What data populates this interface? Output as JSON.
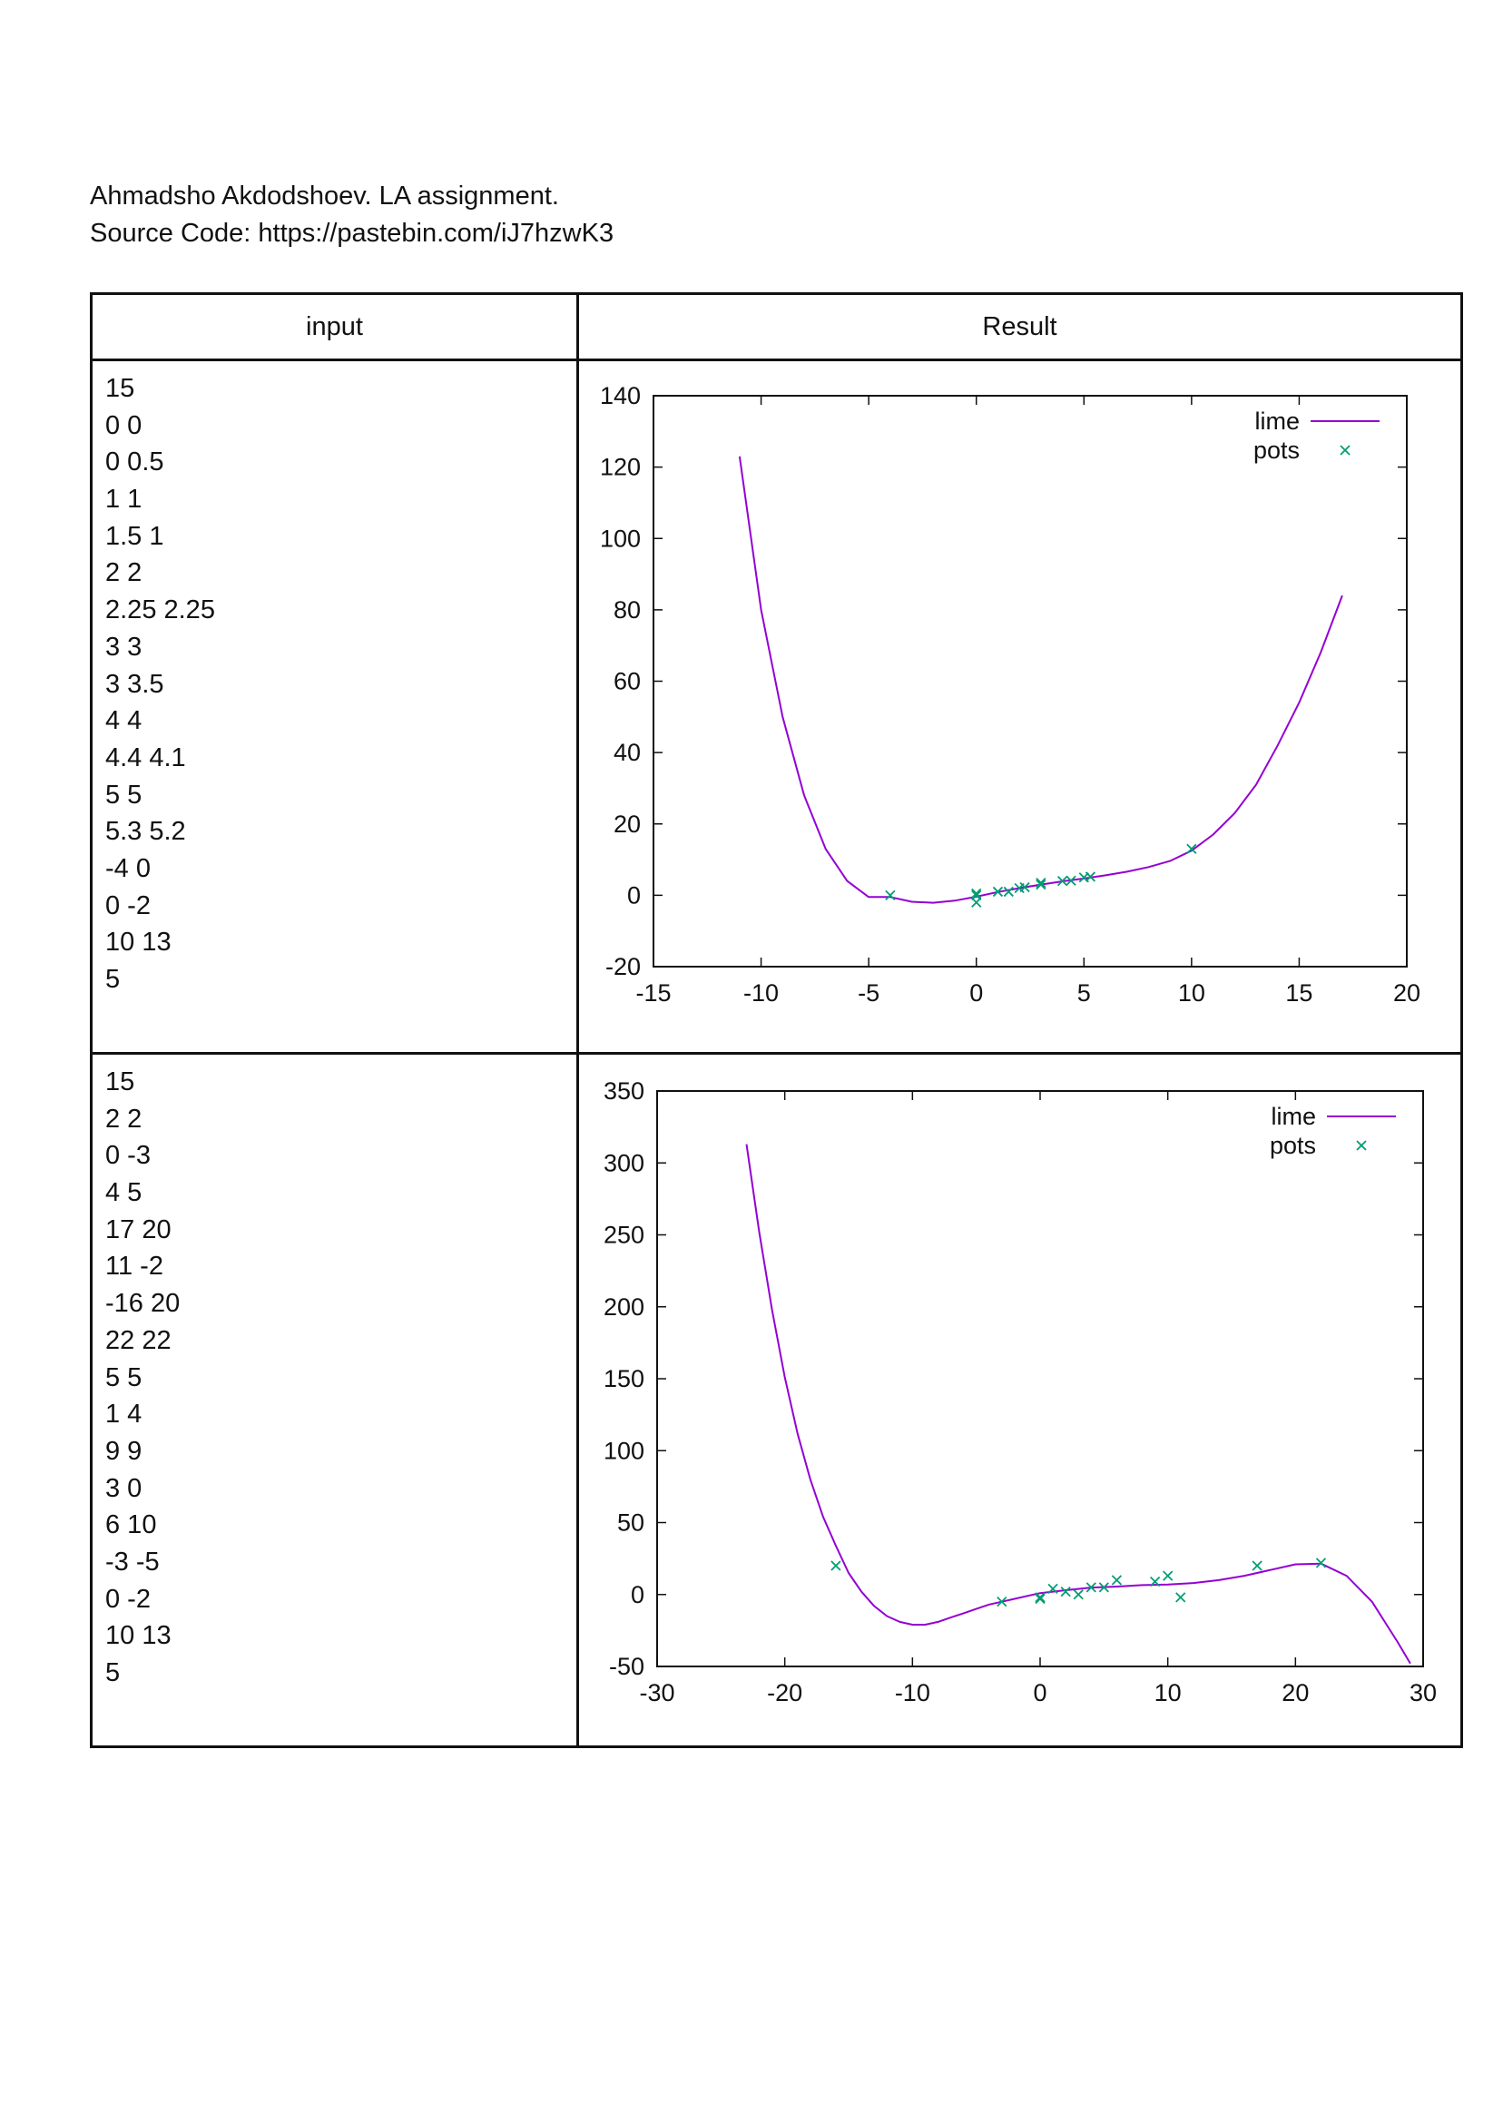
{
  "header": {
    "line1": "Ahmadsho Akdodshoev. LA assignment.",
    "line2": "Source Code: https://pastebin.com/iJ7hzwK3"
  },
  "table": {
    "col_input": "input",
    "col_result": "Result"
  },
  "rows": [
    {
      "input_lines": [
        "15",
        "0 0",
        "0 0.5",
        "1 1",
        "1.5 1",
        "2 2",
        "2.25 2.25",
        "3 3",
        "3 3.5",
        "4 4",
        "4.4 4.1",
        "5 5",
        "5.3 5.2",
        "-4 0",
        "0 -2",
        "10 13",
        "5"
      ]
    },
    {
      "input_lines": [
        "15",
        "2 2",
        "0 -3",
        "4 5",
        "17 20",
        "11 -2",
        "-16 20",
        "22 22",
        "5 5",
        "1 4",
        "9 9",
        "3 0",
        "6 10",
        "-3 -5",
        "0 -2",
        "10 13",
        "5"
      ]
    }
  ],
  "colors": {
    "line": "#9400d3",
    "points": "#009e73"
  },
  "chart_data": [
    {
      "type": "line",
      "xlim": [
        -15,
        20
      ],
      "ylim": [
        -20,
        140
      ],
      "xticks": [
        -15,
        -10,
        -5,
        0,
        5,
        10,
        15,
        20
      ],
      "yticks": [
        -20,
        0,
        20,
        40,
        60,
        80,
        100,
        120,
        140
      ],
      "legend_position": "top-right",
      "series": [
        {
          "name": "lime",
          "kind": "line",
          "x": [
            -11,
            -10,
            -9,
            -8,
            -7,
            -6,
            -5,
            -4,
            -3,
            -2,
            -1,
            0,
            1,
            2,
            3,
            4,
            5,
            6,
            7,
            8,
            9,
            10,
            11,
            12,
            13,
            14,
            15,
            16,
            17
          ],
          "y": [
            123,
            80,
            50,
            28,
            13,
            4,
            -0.5,
            -0.5,
            -1.8,
            -2.1,
            -1.5,
            -0.4,
            0.9,
            2.0,
            3.0,
            3.9,
            4.7,
            5.6,
            6.6,
            7.9,
            9.6,
            12.5,
            17,
            23,
            31,
            42,
            54,
            68,
            84
          ]
        },
        {
          "name": "pots",
          "kind": "points",
          "x": [
            0,
            0,
            1,
            1.5,
            2,
            2.25,
            3,
            3,
            4,
            4.4,
            5,
            5.3,
            -4,
            0,
            10
          ],
          "y": [
            0,
            0.5,
            1,
            1,
            2,
            2.25,
            3,
            3.5,
            4,
            4.1,
            5,
            5.2,
            0,
            -2,
            13
          ]
        }
      ]
    },
    {
      "type": "line",
      "xlim": [
        -30,
        30
      ],
      "ylim": [
        -50,
        350
      ],
      "xticks": [
        -30,
        -20,
        -10,
        0,
        10,
        20,
        30
      ],
      "yticks": [
        -50,
        0,
        50,
        100,
        150,
        200,
        250,
        300,
        350
      ],
      "legend_position": "top-right",
      "series": [
        {
          "name": "lime",
          "kind": "line",
          "x": [
            -23,
            -22,
            -21,
            -20,
            -19,
            -18,
            -17,
            -16,
            -15,
            -14,
            -13,
            -12,
            -11,
            -10,
            -9,
            -8,
            -7,
            -6,
            -5,
            -4,
            -3,
            -2,
            -1,
            0,
            2,
            4,
            6,
            8,
            10,
            12,
            14,
            16,
            18,
            20,
            22,
            24,
            26,
            28,
            29
          ],
          "y": [
            313,
            252,
            198,
            151,
            112,
            80,
            54,
            34,
            15,
            2,
            -8,
            -15,
            -19,
            -21,
            -21,
            -19,
            -16,
            -13,
            -10,
            -7,
            -5,
            -3,
            -1,
            1,
            3,
            4.8,
            5.5,
            6.5,
            7,
            8,
            10,
            13,
            17,
            21,
            21.5,
            13,
            -5,
            -33,
            -48
          ]
        },
        {
          "name": "pots",
          "kind": "points",
          "x": [
            2,
            0,
            4,
            17,
            11,
            -16,
            22,
            5,
            1,
            9,
            3,
            6,
            -3,
            0,
            10
          ],
          "y": [
            2,
            -3,
            5,
            20,
            -2,
            20,
            22,
            5,
            4,
            9,
            0,
            10,
            -5,
            -2,
            13
          ]
        }
      ]
    }
  ]
}
